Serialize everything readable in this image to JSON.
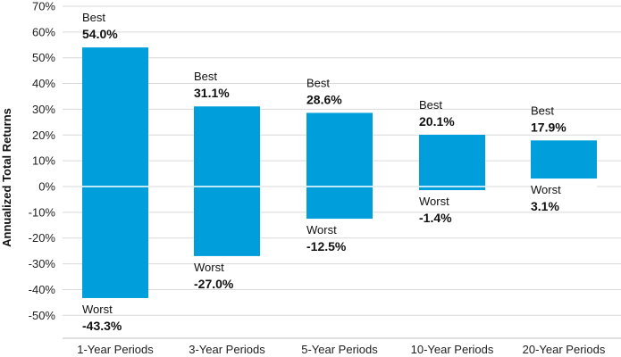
{
  "chart_data": {
    "type": "bar",
    "ylabel": "Annualized Total Returns",
    "ylim": [
      -55,
      70
    ],
    "yticks": [
      -50,
      -40,
      -30,
      -20,
      -10,
      0,
      10,
      20,
      30,
      40,
      50,
      60,
      70
    ],
    "ytick_labels": [
      "-50%",
      "-40%",
      "-30%",
      "-20%",
      "-10%",
      "0%",
      "10%",
      "20%",
      "30%",
      "40%",
      "50%",
      "60%",
      "70%"
    ],
    "grid": true,
    "bar_color": "#009edb",
    "best_word": "Best",
    "worst_word": "Worst",
    "categories": [
      "1-Year Periods",
      "3-Year Periods",
      "5-Year Periods",
      "10-Year Periods",
      "20-Year Periods"
    ],
    "best": [
      54.0,
      31.1,
      28.6,
      20.1,
      17.9
    ],
    "worst": [
      -43.3,
      -27.0,
      -12.5,
      -1.4,
      3.1
    ],
    "best_labels": [
      "54.0%",
      "31.1%",
      "28.6%",
      "20.1%",
      "17.9%"
    ],
    "worst_labels": [
      "-43.3%",
      "-27.0%",
      "-12.5%",
      "-1.4%",
      "3.1%"
    ]
  }
}
